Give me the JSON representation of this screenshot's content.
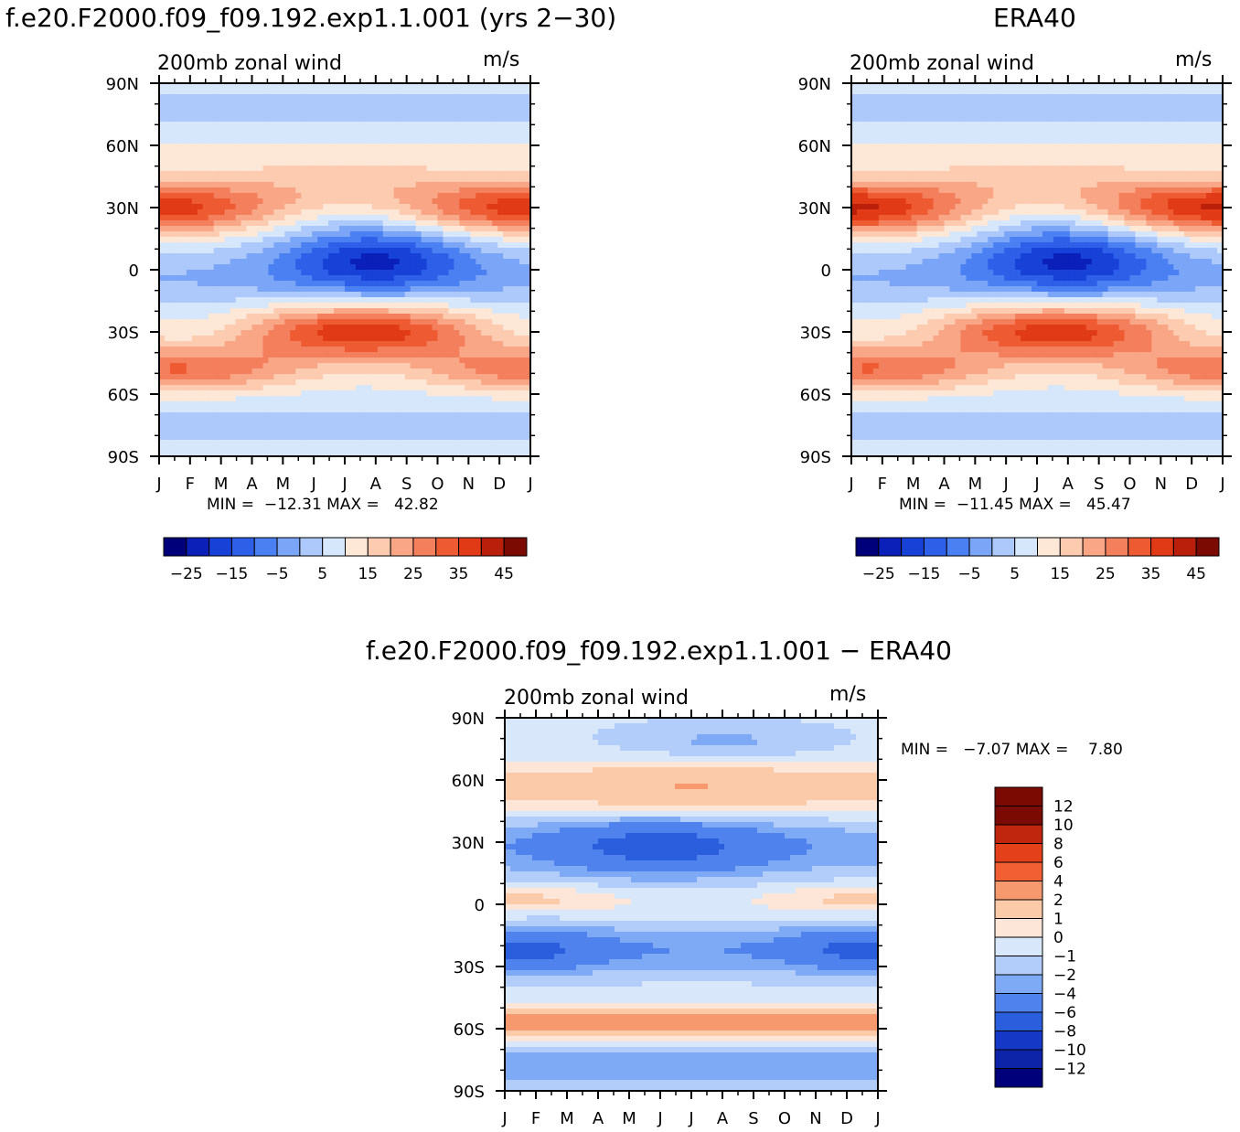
{
  "colors": {
    "full_field_palette": [
      "#00007a",
      "#0b1fb9",
      "#1741d7",
      "#2e5fe8",
      "#4a80f2",
      "#7ba5f7",
      "#adc9fb",
      "#d6e6fb",
      "#fde7d7",
      "#fccbb0",
      "#f9a686",
      "#f47f5d",
      "#ee5b33",
      "#e13a17",
      "#b91f0b",
      "#7b0a02"
    ],
    "diff_palette": [
      "#7b0a02",
      "#c0250d",
      "#e4411b",
      "#f15f33",
      "#f7996f",
      "#fbcaa9",
      "#fde6d7",
      "#d9e7fb",
      "#b3cdfa",
      "#7ea9f5",
      "#4f82ed",
      "#2a5edc",
      "#1538c7",
      "#0d23a8",
      "#00007a"
    ]
  },
  "panels": {
    "model": {
      "title": "f.e20.F2000.f09_f09.192.exp1.1.001 (yrs 2−30)",
      "label_left": "200mb zonal wind",
      "label_right": "m/s",
      "stats": "MIN =  −12.31 MAX =   42.82"
    },
    "era40": {
      "title": "ERA40",
      "label_left": "200mb zonal wind",
      "label_right": "m/s",
      "stats": "MIN =  −11.45 MAX =   45.47"
    },
    "diff": {
      "title": "f.e20.F2000.f09_f09.192.exp1.1.001 − ERA40",
      "label_left": "200mb zonal wind",
      "label_right": "m/s",
      "stats": "MIN =   −7.07 MAX =    7.80"
    }
  },
  "colorbar_full_labels": [
    "−25",
    "−15",
    "−5",
    "5",
    "15",
    "25",
    "35",
    "45"
  ],
  "colorbar_diff_labels": [
    "12",
    "10",
    "8",
    "6",
    "4",
    "2",
    "1",
    "0",
    "−1",
    "−2",
    "−4",
    "−6",
    "−8",
    "−10",
    "−12"
  ],
  "chart_data": [
    {
      "type": "heatmap",
      "title": "f.e20.F2000.f09_f09.192.exp1.1.001 (yrs 2−30)",
      "subtitle": "200mb zonal wind",
      "units": "m/s",
      "x_ticks": [
        "J",
        "F",
        "M",
        "A",
        "M",
        "J",
        "J",
        "A",
        "S",
        "O",
        "N",
        "D",
        "J"
      ],
      "y_ticks": [
        "90N",
        "60N",
        "30N",
        "0",
        "30S",
        "60S",
        "90S"
      ],
      "y_range_deg": [
        -90,
        90
      ],
      "min": -12.31,
      "max": 42.82,
      "levels": [
        -30,
        -25,
        -20,
        -15,
        -10,
        -5,
        0,
        5,
        10,
        15,
        20,
        25,
        30,
        35,
        40,
        45,
        50
      ]
    },
    {
      "type": "heatmap",
      "title": "ERA40",
      "subtitle": "200mb zonal wind",
      "units": "m/s",
      "x_ticks": [
        "J",
        "F",
        "M",
        "A",
        "M",
        "J",
        "J",
        "A",
        "S",
        "O",
        "N",
        "D",
        "J"
      ],
      "y_ticks": [
        "90N",
        "60N",
        "30N",
        "0",
        "30S",
        "60S",
        "90S"
      ],
      "y_range_deg": [
        -90,
        90
      ],
      "min": -11.45,
      "max": 45.47,
      "levels": [
        -30,
        -25,
        -20,
        -15,
        -10,
        -5,
        0,
        5,
        10,
        15,
        20,
        25,
        30,
        35,
        40,
        45,
        50
      ]
    },
    {
      "type": "heatmap",
      "title": "f.e20.F2000.f09_f09.192.exp1.1.001 − ERA40",
      "subtitle": "200mb zonal wind",
      "units": "m/s",
      "x_ticks": [
        "J",
        "F",
        "M",
        "A",
        "M",
        "J",
        "J",
        "A",
        "S",
        "O",
        "N",
        "D",
        "J"
      ],
      "y_ticks": [
        "90N",
        "60N",
        "30N",
        "0",
        "30S",
        "60S",
        "90S"
      ],
      "y_range_deg": [
        -90,
        90
      ],
      "min": -7.07,
      "max": 7.8,
      "levels": [
        -12,
        -10,
        -8,
        -6,
        -4,
        -2,
        -1,
        0,
        1,
        2,
        4,
        6,
        8,
        10,
        12
      ]
    }
  ]
}
